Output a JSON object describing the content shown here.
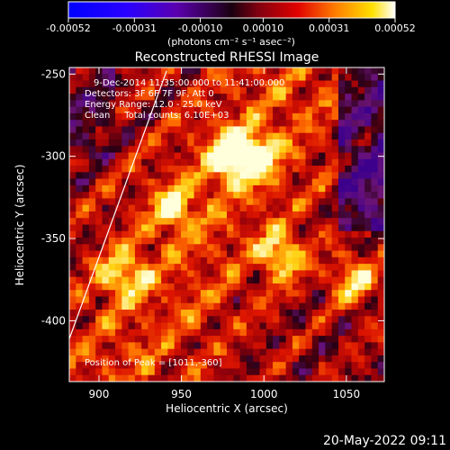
{
  "colorbar": {
    "ticks": [
      "-0.00052",
      "-0.00031",
      "-0.00010",
      "0.00010",
      "0.00031",
      "0.00052"
    ],
    "range": [
      -0.00052,
      0.00052
    ],
    "units": "(photons cm⁻² s⁻¹ asec⁻²)"
  },
  "chart_data": {
    "type": "heatmap",
    "title": "Reconstructed RHESSI Image",
    "xlabel": "Heliocentric X (arcsec)",
    "ylabel": "Heliocentric Y (arcsec)",
    "xlim": [
      882,
      1073
    ],
    "ylim": [
      -437,
      -246
    ],
    "xticks": [
      900,
      950,
      1000,
      1050
    ],
    "yticks": [
      -250,
      -300,
      -350,
      -400
    ],
    "peak": [
      1011,
      -360
    ],
    "limb_line": [
      [
        882,
        -411
      ],
      [
        941,
        -248
      ]
    ],
    "bright_sources": [
      {
        "x": 980,
        "y": -300,
        "intensity": 1.0
      },
      {
        "x": 995,
        "y": -300,
        "intensity": 0.9
      },
      {
        "x": 1011,
        "y": -360,
        "intensity": 0.85
      },
      {
        "x": 915,
        "y": -372,
        "intensity": 0.8
      },
      {
        "x": 945,
        "y": -330,
        "intensity": 0.75
      },
      {
        "x": 1055,
        "y": -375,
        "intensity": 0.8
      }
    ],
    "annotations": [
      "9-Dec-2014 11:35:00.000 to 11:41:00.000",
      "Detectors: 3F 6F 7F 9F, Att 0",
      "Energy Range: 12.0 - 25.0 keV",
      "Clean     Total counts: 6.10E+03"
    ],
    "peak_label": "Position of Peak = [1011,-360]"
  },
  "footer": {
    "timestamp": "20-May-2022 09:11"
  }
}
